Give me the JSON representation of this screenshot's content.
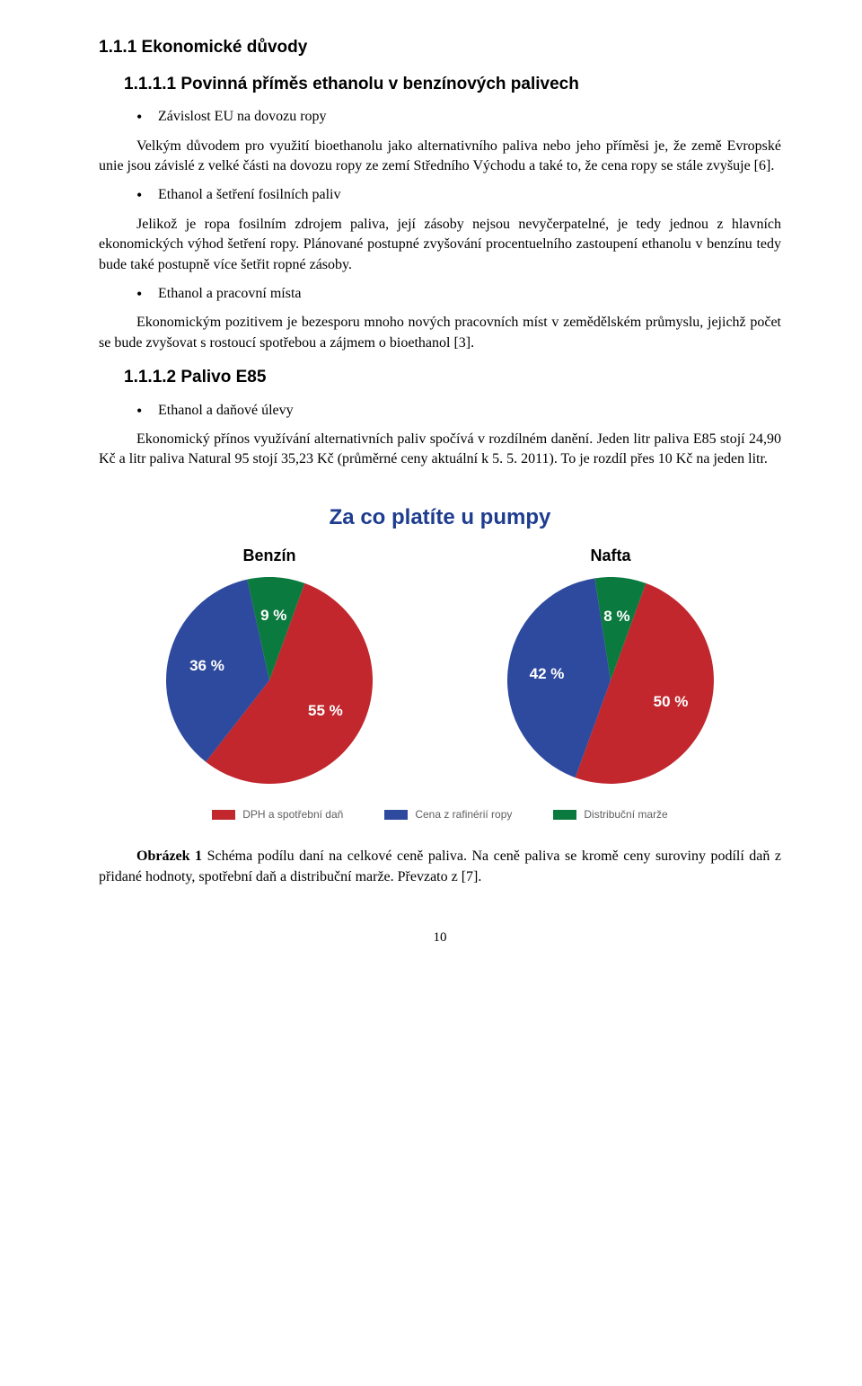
{
  "section": {
    "heading": "1.1.1  Ekonomické důvody",
    "sub1": "1.1.1.1 Povinná příměs ethanolu v benzínových palivech",
    "bullet1": "Závislost EU na dovozu ropy",
    "para1": "Velkým důvodem pro využití bioethanolu jako alternativního paliva nebo jeho příměsi je, že země Evropské unie jsou závislé z velké části na dovozu ropy ze zemí Středního Východu a také to, že cena ropy se stále zvyšuje [6].",
    "bullet2": "Ethanol a šetření fosilních paliv",
    "para2": "Jelikož je ropa fosilním zdrojem paliva, její zásoby nejsou nevyčerpatelné, je tedy jednou z hlavních ekonomických výhod šetření ropy. Plánované postupné zvyšování procentuelního zastoupení ethanolu v benzínu tedy bude také postupně více šetřit ropné zásoby.",
    "bullet3": "Ethanol a pracovní místa",
    "para3": "Ekonomickým pozitivem je bezesporu mnoho nových pracovních míst v zemědělském průmyslu, jejichž počet se bude zvyšovat s rostoucí spotřebou a zájmem o bioethanol [3].",
    "sub2": "1.1.1.2 Palivo E85",
    "bullet4": "Ethanol a daňové úlevy",
    "para4": "Ekonomický přínos využívání alternativních paliv spočívá v rozdílném danění. Jeden litr paliva E85 stojí 24,90 Kč a litr paliva Natural 95 stojí 35,23 Kč (průměrné ceny aktuální k 5. 5. 2011). To je rozdíl přes 10 Kč na jeden litr."
  },
  "chart": {
    "type": "pie",
    "title": "Za co platíte u pumpy",
    "title_color": "#1e3d8f",
    "title_fontsize": 24,
    "subtitle_fontsize": 18,
    "subtitle_color": "#000000",
    "pie_radius": 115,
    "label_fontsize": 17,
    "label_color": "#ffffff",
    "background": "#ffffff",
    "series_colors": {
      "tax": "#c1272d",
      "refinery": "#2e4a9e",
      "distribution": "#0b7a3e"
    },
    "pies": [
      {
        "subtitle": "Benzín",
        "slices": [
          {
            "key": "tax",
            "value": 55,
            "label": "55 %"
          },
          {
            "key": "refinery",
            "value": 36,
            "label": "36 %"
          },
          {
            "key": "distribution",
            "value": 9,
            "label": "9 %"
          }
        ]
      },
      {
        "subtitle": "Nafta",
        "slices": [
          {
            "key": "tax",
            "value": 50,
            "label": "50 %"
          },
          {
            "key": "refinery",
            "value": 42,
            "label": "42 %"
          },
          {
            "key": "distribution",
            "value": 8,
            "label": "8 %"
          }
        ]
      }
    ],
    "legend": [
      {
        "key": "tax",
        "label": "DPH a spotřební daň"
      },
      {
        "key": "refinery",
        "label": "Cena z rafinérií ropy"
      },
      {
        "key": "distribution",
        "label": "Distribuční marže"
      }
    ],
    "legend_fontsize": 12,
    "legend_color": "#5f5f5f",
    "caption_bold": "Obrázek 1",
    "caption_rest": " Schéma podílu daní na celkové ceně paliva. Na ceně paliva se kromě ceny suroviny podílí daň z přidané hodnoty, spotřební daň a distribuční marže. Převzato z [7]."
  },
  "pagenum": "10"
}
